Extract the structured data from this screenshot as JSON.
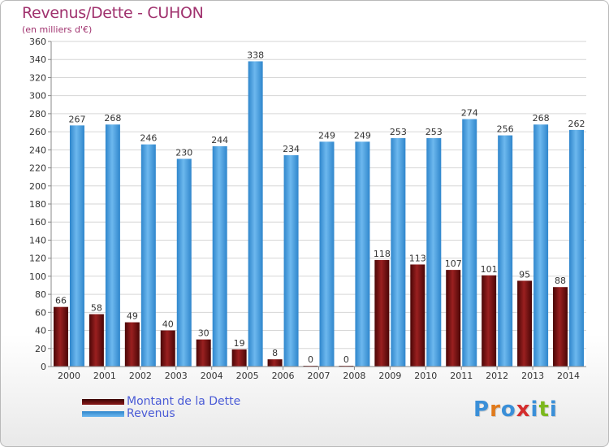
{
  "chart_data": {
    "type": "bar",
    "title": "Revenus/Dette - CUHON",
    "subtitle": "(en milliers d'€)",
    "categories": [
      "2000",
      "2001",
      "2002",
      "2003",
      "2004",
      "2005",
      "2006",
      "2007",
      "2008",
      "2009",
      "2010",
      "2011",
      "2012",
      "2013",
      "2014"
    ],
    "series": [
      {
        "name": "Montant de la Dette",
        "color": "#7a1414",
        "values": [
          66,
          58,
          49,
          40,
          30,
          19,
          8,
          0,
          0,
          118,
          113,
          107,
          101,
          95,
          88
        ]
      },
      {
        "name": "Revenus",
        "color": "#4a9fe0",
        "values": [
          267,
          268,
          246,
          230,
          244,
          338,
          234,
          249,
          249,
          253,
          253,
          274,
          256,
          268,
          262
        ]
      }
    ],
    "ylim": [
      0,
      360
    ],
    "ytick_step": 20,
    "grid": true,
    "legend_position": "bottom-left"
  },
  "logo": {
    "text": "Proxiti",
    "colors": [
      "#3a8fd8",
      "#e07a1c",
      "#3a8fd8",
      "#d42d2d",
      "#3a8fd8",
      "#7cb81d",
      "#3a8fd8"
    ]
  }
}
